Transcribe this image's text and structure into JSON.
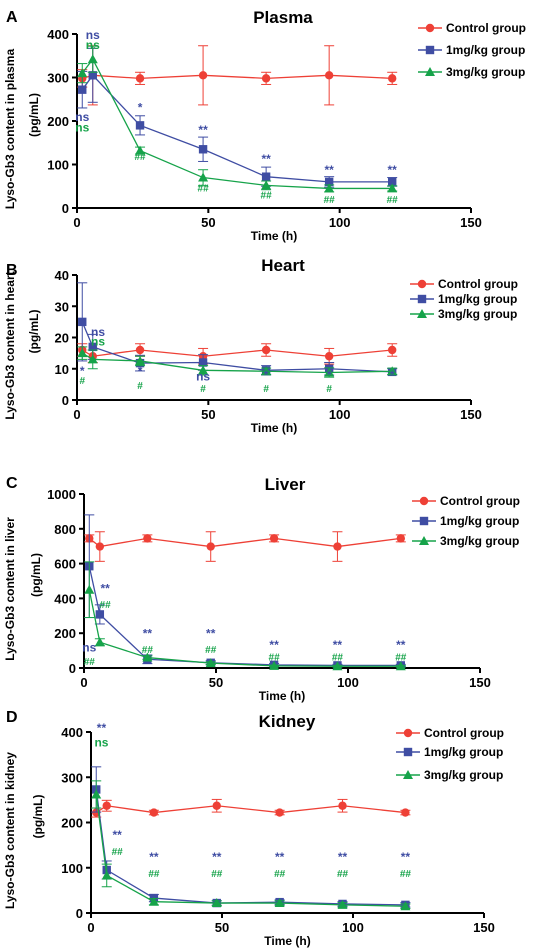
{
  "chart_data": [
    {
      "panel_letter": "A",
      "type": "line",
      "title": "Plasma",
      "xlabel": "Time (h)",
      "ylabel": [
        "Lyso-Gb3 content in plasma",
        "(pg/mL)"
      ],
      "xlim": [
        0,
        150
      ],
      "ylim": [
        0,
        400
      ],
      "xticks": [
        0,
        50,
        100,
        150
      ],
      "yticks": [
        0,
        100,
        200,
        300,
        400
      ],
      "x": [
        2,
        6,
        24,
        48,
        72,
        96,
        120
      ],
      "series": [
        {
          "name": "Control group",
          "color": "#ee4036",
          "marker": "circle",
          "values": [
            298,
            305,
            298,
            305,
            298,
            305,
            298
          ],
          "errors": [
            20,
            68,
            14,
            68,
            14,
            68,
            14
          ]
        },
        {
          "name": "1mg/kg group",
          "color": "#3f4da3",
          "marker": "square",
          "values": [
            272,
            305,
            190,
            135,
            72,
            60,
            60
          ],
          "errors": [
            42,
            62,
            22,
            28,
            22,
            12,
            10
          ]
        },
        {
          "name": "3mg/kg group",
          "color": "#16a34a",
          "marker": "triangle",
          "values": [
            310,
            342,
            132,
            70,
            52,
            45,
            45
          ],
          "errors": [
            22,
            30,
            8,
            18,
            10,
            8,
            6
          ]
        }
      ],
      "annotations": [
        {
          "text": "ns",
          "x": 6,
          "y": 388,
          "series": 1
        },
        {
          "text": "ns",
          "x": 6,
          "y": 366,
          "series": 2
        },
        {
          "text": "ns",
          "x": 2,
          "y": 200,
          "series": 1
        },
        {
          "text": "ns",
          "x": 2,
          "y": 176,
          "series": 2
        },
        {
          "text": "*",
          "x": 24,
          "y": 222,
          "series": 1
        },
        {
          "text": "**",
          "x": 48,
          "y": 170,
          "series": 1
        },
        {
          "text": "**",
          "x": 72,
          "y": 104,
          "series": 1
        },
        {
          "text": "**",
          "x": 96,
          "y": 78,
          "series": 1
        },
        {
          "text": "**",
          "x": 120,
          "y": 78,
          "series": 1
        },
        {
          "text": "##",
          "x": 24,
          "y": 110,
          "series": 2
        },
        {
          "text": "##",
          "x": 48,
          "y": 38,
          "series": 2
        },
        {
          "text": "##",
          "x": 72,
          "y": 22,
          "series": 2
        },
        {
          "text": "##",
          "x": 96,
          "y": 12,
          "series": 2
        },
        {
          "text": "##",
          "x": 120,
          "y": 12,
          "series": 2
        }
      ]
    },
    {
      "panel_letter": "B",
      "type": "line",
      "title": "Heart",
      "xlabel": "Time (h)",
      "ylabel": [
        "Lyso-Gb3 content in heart",
        "(pg/mL)"
      ],
      "xlim": [
        0,
        150
      ],
      "ylim": [
        0,
        40
      ],
      "xticks": [
        0,
        50,
        100,
        150
      ],
      "yticks": [
        0,
        10,
        20,
        30,
        40
      ],
      "x": [
        2,
        6,
        24,
        48,
        72,
        96,
        120
      ],
      "series": [
        {
          "name": "Control group",
          "color": "#ee4036",
          "marker": "circle",
          "values": [
            16,
            14,
            16,
            14,
            16,
            14,
            16
          ],
          "errors": [
            2,
            2,
            2,
            2.5,
            2,
            2.5,
            2
          ]
        },
        {
          "name": "1mg/kg group",
          "color": "#3f4da3",
          "marker": "square",
          "values": [
            25,
            17,
            11.8,
            12,
            9.5,
            10,
            9
          ],
          "errors": [
            12.5,
            4,
            2.5,
            2.5,
            1.5,
            2,
            1
          ]
        },
        {
          "name": "3mg/kg group",
          "color": "#16a34a",
          "marker": "triangle",
          "values": [
            15,
            13,
            12.5,
            9.5,
            9.2,
            8.8,
            9.2
          ],
          "errors": [
            2,
            3,
            1.5,
            1.5,
            1,
            1.5,
            1
          ]
        }
      ],
      "annotations": [
        {
          "text": "ns",
          "x": 8,
          "y": 20.5,
          "series": 1
        },
        {
          "text": "ns",
          "x": 8,
          "y": 17.5,
          "series": 2
        },
        {
          "text": "*",
          "x": 2,
          "y": 8,
          "series": 1
        },
        {
          "text": "#",
          "x": 2,
          "y": 5.2,
          "series": 2
        },
        {
          "text": "*",
          "x": 24,
          "y": 8,
          "series": 1
        },
        {
          "text": "#",
          "x": 24,
          "y": 3.5,
          "series": 2
        },
        {
          "text": "ns",
          "x": 48,
          "y": 6.2,
          "series": 1
        },
        {
          "text": "#",
          "x": 48,
          "y": 2.5,
          "series": 2
        },
        {
          "text": "*",
          "x": 72,
          "y": 6.8,
          "series": 1
        },
        {
          "text": "#",
          "x": 72,
          "y": 2.5,
          "series": 2
        },
        {
          "text": "*",
          "x": 96,
          "y": 6.8,
          "series": 1
        },
        {
          "text": "#",
          "x": 96,
          "y": 2.5,
          "series": 2
        },
        {
          "text": "*",
          "x": 120,
          "y": 6.8,
          "series": 1
        }
      ]
    },
    {
      "panel_letter": "C",
      "type": "line",
      "title": "Liver",
      "xlabel": "Time (h)",
      "ylabel": [
        "Lyso-Gb3 content in liver",
        "(pg/mL)"
      ],
      "xlim": [
        0,
        150
      ],
      "ylim": [
        0,
        1000
      ],
      "xticks": [
        0,
        50,
        100,
        150
      ],
      "yticks": [
        0,
        200,
        400,
        600,
        800,
        1000
      ],
      "x": [
        2,
        6,
        24,
        48,
        72,
        96,
        120
      ],
      "series": [
        {
          "name": "Control group",
          "color": "#ee4036",
          "marker": "circle",
          "values": [
            745,
            698,
            745,
            698,
            745,
            698,
            745
          ],
          "errors": [
            20,
            85,
            20,
            85,
            20,
            85,
            20
          ]
        },
        {
          "name": "1mg/kg group",
          "color": "#3f4da3",
          "marker": "square",
          "values": [
            585,
            308,
            50,
            30,
            18,
            15,
            15
          ],
          "errors": [
            295,
            55,
            25,
            12,
            8,
            6,
            6
          ]
        },
        {
          "name": "3mg/kg group",
          "color": "#16a34a",
          "marker": "triangle",
          "values": [
            450,
            148,
            60,
            28,
            12,
            10,
            10
          ],
          "errors": [
            160,
            20,
            10,
            8,
            5,
            5,
            5
          ]
        }
      ],
      "annotations": [
        {
          "text": "**",
          "x": 8,
          "y": 435,
          "series": 1
        },
        {
          "text": "##",
          "x": 8,
          "y": 345,
          "series": 2
        },
        {
          "text": "ns",
          "x": 2,
          "y": 95,
          "series": 1
        },
        {
          "text": "##",
          "x": 2,
          "y": 18,
          "series": 2
        },
        {
          "text": "**",
          "x": 24,
          "y": 175,
          "series": 1
        },
        {
          "text": "##",
          "x": 24,
          "y": 85,
          "series": 2
        },
        {
          "text": "**",
          "x": 48,
          "y": 175,
          "series": 1
        },
        {
          "text": "##",
          "x": 48,
          "y": 85,
          "series": 2
        },
        {
          "text": "**",
          "x": 72,
          "y": 110,
          "series": 1
        },
        {
          "text": "##",
          "x": 72,
          "y": 42,
          "series": 2
        },
        {
          "text": "**",
          "x": 96,
          "y": 110,
          "series": 1
        },
        {
          "text": "##",
          "x": 96,
          "y": 42,
          "series": 2
        },
        {
          "text": "**",
          "x": 120,
          "y": 110,
          "series": 1
        },
        {
          "text": "##",
          "x": 120,
          "y": 42,
          "series": 2
        }
      ]
    },
    {
      "panel_letter": "D",
      "type": "line",
      "title": "Kidney",
      "xlabel": "Time (h)",
      "ylabel": [
        "Lyso-Gb3 content in kidney",
        "(pg/mL)"
      ],
      "xlim": [
        0,
        150
      ],
      "ylim": [
        0,
        400
      ],
      "xticks": [
        0,
        50,
        100,
        150
      ],
      "yticks": [
        0,
        100,
        200,
        300,
        400
      ],
      "x": [
        2,
        6,
        24,
        48,
        72,
        96,
        120
      ],
      "series": [
        {
          "name": "Control group",
          "color": "#ee4036",
          "marker": "circle",
          "values": [
            222,
            237,
            222,
            237,
            222,
            237,
            222
          ],
          "errors": [
            10,
            12,
            5,
            14,
            5,
            14,
            5
          ]
        },
        {
          "name": "1mg/kg group",
          "color": "#3f4da3",
          "marker": "square",
          "values": [
            273,
            95,
            33,
            22,
            24,
            20,
            18
          ],
          "errors": [
            50,
            20,
            8,
            5,
            5,
            5,
            5
          ]
        },
        {
          "name": "3mg/kg group",
          "color": "#16a34a",
          "marker": "triangle",
          "values": [
            262,
            83,
            25,
            22,
            22,
            18,
            15
          ],
          "errors": [
            30,
            25,
            7,
            5,
            5,
            5,
            5
          ]
        }
      ],
      "annotations": [
        {
          "text": "**",
          "x": 4,
          "y": 400,
          "series": 1
        },
        {
          "text": "ns",
          "x": 4,
          "y": 368,
          "series": 2
        },
        {
          "text": "**",
          "x": 10,
          "y": 163,
          "series": 1
        },
        {
          "text": "##",
          "x": 10,
          "y": 128,
          "series": 2
        },
        {
          "text": "**",
          "x": 24,
          "y": 115,
          "series": 1
        },
        {
          "text": "##",
          "x": 24,
          "y": 80,
          "series": 2
        },
        {
          "text": "**",
          "x": 48,
          "y": 115,
          "series": 1
        },
        {
          "text": "##",
          "x": 48,
          "y": 80,
          "series": 2
        },
        {
          "text": "**",
          "x": 72,
          "y": 115,
          "series": 1
        },
        {
          "text": "##",
          "x": 72,
          "y": 80,
          "series": 2
        },
        {
          "text": "**",
          "x": 96,
          "y": 115,
          "series": 1
        },
        {
          "text": "##",
          "x": 96,
          "y": 80,
          "series": 2
        },
        {
          "text": "**",
          "x": 120,
          "y": 115,
          "series": 1
        },
        {
          "text": "##",
          "x": 120,
          "y": 80,
          "series": 2
        }
      ]
    }
  ]
}
